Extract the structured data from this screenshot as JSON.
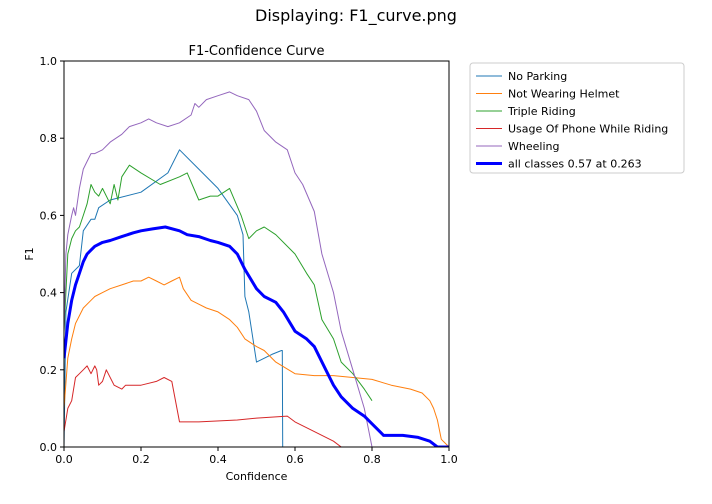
{
  "window": {
    "title": "Displaying: F1_curve.png"
  },
  "chart_data": {
    "type": "line",
    "title": "F1-Confidence Curve",
    "xlabel": "Confidence",
    "ylabel": "F1",
    "xlim": [
      0.0,
      1.0
    ],
    "ylim": [
      0.0,
      1.0
    ],
    "xticks": [
      "0.0",
      "0.2",
      "0.4",
      "0.6",
      "0.8",
      "1.0"
    ],
    "yticks": [
      "0.0",
      "0.2",
      "0.4",
      "0.6",
      "0.8",
      "1.0"
    ],
    "grid": false,
    "legend_position": "outside-right-top",
    "series": [
      {
        "name": "No Parking",
        "color": "#1f77b4",
        "width": "thin",
        "x": [
          0.0,
          0.005,
          0.02,
          0.04,
          0.05,
          0.07,
          0.08,
          0.09,
          0.12,
          0.2,
          0.27,
          0.3,
          0.35,
          0.4,
          0.45,
          0.465,
          0.47,
          0.48,
          0.5,
          0.54,
          0.565,
          0.567,
          0.568
        ],
        "y": [
          0.0,
          0.35,
          0.45,
          0.47,
          0.56,
          0.59,
          0.59,
          0.62,
          0.64,
          0.66,
          0.71,
          0.77,
          0.72,
          0.67,
          0.6,
          0.55,
          0.39,
          0.35,
          0.22,
          0.24,
          0.25,
          0.25,
          0.0
        ]
      },
      {
        "name": "Not Wearing Helmet",
        "color": "#ff7f0e",
        "width": "thin",
        "x": [
          0.0,
          0.01,
          0.02,
          0.03,
          0.05,
          0.07,
          0.08,
          0.1,
          0.12,
          0.15,
          0.18,
          0.2,
          0.22,
          0.24,
          0.26,
          0.28,
          0.3,
          0.31,
          0.33,
          0.35,
          0.37,
          0.4,
          0.43,
          0.45,
          0.47,
          0.5,
          0.52,
          0.55,
          0.6,
          0.65,
          0.7,
          0.75,
          0.8,
          0.85,
          0.9,
          0.93,
          0.95,
          0.96,
          0.97,
          0.98,
          1.0
        ],
        "y": [
          0.1,
          0.23,
          0.28,
          0.32,
          0.36,
          0.38,
          0.39,
          0.4,
          0.41,
          0.42,
          0.43,
          0.43,
          0.44,
          0.43,
          0.42,
          0.43,
          0.44,
          0.41,
          0.38,
          0.37,
          0.36,
          0.35,
          0.33,
          0.31,
          0.28,
          0.26,
          0.25,
          0.22,
          0.19,
          0.185,
          0.185,
          0.18,
          0.175,
          0.16,
          0.15,
          0.14,
          0.12,
          0.1,
          0.07,
          0.02,
          0.0
        ]
      },
      {
        "name": "Triple Riding",
        "color": "#2ca02c",
        "width": "thin",
        "x": [
          0.0,
          0.01,
          0.02,
          0.03,
          0.04,
          0.05,
          0.06,
          0.07,
          0.08,
          0.09,
          0.1,
          0.12,
          0.13,
          0.14,
          0.15,
          0.17,
          0.2,
          0.25,
          0.3,
          0.32,
          0.35,
          0.38,
          0.4,
          0.43,
          0.46,
          0.48,
          0.5,
          0.52,
          0.55,
          0.6,
          0.63,
          0.65,
          0.67,
          0.7,
          0.72,
          0.75,
          0.78,
          0.8
        ],
        "y": [
          0.3,
          0.5,
          0.54,
          0.56,
          0.57,
          0.6,
          0.63,
          0.68,
          0.66,
          0.65,
          0.67,
          0.63,
          0.68,
          0.64,
          0.7,
          0.73,
          0.71,
          0.68,
          0.7,
          0.71,
          0.64,
          0.65,
          0.65,
          0.67,
          0.6,
          0.54,
          0.56,
          0.57,
          0.55,
          0.5,
          0.45,
          0.42,
          0.33,
          0.28,
          0.22,
          0.19,
          0.15,
          0.12
        ]
      },
      {
        "name": "Usage Of Phone While Riding",
        "color": "#d62728",
        "width": "thin",
        "x": [
          0.0,
          0.01,
          0.02,
          0.025,
          0.03,
          0.04,
          0.05,
          0.06,
          0.07,
          0.08,
          0.085,
          0.09,
          0.1,
          0.11,
          0.13,
          0.15,
          0.16,
          0.2,
          0.24,
          0.26,
          0.28,
          0.3,
          0.35,
          0.45,
          0.5,
          0.58,
          0.6,
          0.65,
          0.7,
          0.72,
          0.8
        ],
        "y": [
          0.04,
          0.1,
          0.12,
          0.15,
          0.18,
          0.19,
          0.2,
          0.21,
          0.19,
          0.21,
          0.2,
          0.16,
          0.17,
          0.2,
          0.16,
          0.15,
          0.16,
          0.16,
          0.17,
          0.18,
          0.17,
          0.065,
          0.065,
          0.07,
          0.075,
          0.08,
          0.065,
          0.04,
          0.015,
          0.0,
          0.0
        ]
      },
      {
        "name": "Wheeling",
        "color": "#9467bd",
        "width": "thin",
        "x": [
          0.0,
          0.005,
          0.01,
          0.02,
          0.025,
          0.03,
          0.04,
          0.05,
          0.06,
          0.07,
          0.08,
          0.1,
          0.12,
          0.15,
          0.17,
          0.2,
          0.22,
          0.24,
          0.27,
          0.3,
          0.33,
          0.34,
          0.35,
          0.37,
          0.4,
          0.43,
          0.45,
          0.48,
          0.5,
          0.52,
          0.55,
          0.58,
          0.6,
          0.62,
          0.65,
          0.67,
          0.7,
          0.72,
          0.75,
          0.78,
          0.8
        ],
        "y": [
          0.3,
          0.5,
          0.55,
          0.6,
          0.62,
          0.6,
          0.67,
          0.72,
          0.74,
          0.76,
          0.76,
          0.77,
          0.79,
          0.81,
          0.83,
          0.84,
          0.85,
          0.84,
          0.83,
          0.84,
          0.86,
          0.89,
          0.88,
          0.9,
          0.91,
          0.92,
          0.91,
          0.9,
          0.87,
          0.82,
          0.79,
          0.77,
          0.71,
          0.68,
          0.61,
          0.5,
          0.4,
          0.3,
          0.2,
          0.1,
          0.0
        ]
      },
      {
        "name": "all classes 0.57 at 0.263",
        "color": "#0000ff",
        "width": "thick",
        "x": [
          0.0,
          0.01,
          0.02,
          0.03,
          0.04,
          0.05,
          0.06,
          0.07,
          0.08,
          0.1,
          0.12,
          0.15,
          0.18,
          0.2,
          0.23,
          0.263,
          0.3,
          0.32,
          0.35,
          0.38,
          0.4,
          0.43,
          0.45,
          0.47,
          0.5,
          0.52,
          0.55,
          0.57,
          0.6,
          0.63,
          0.65,
          0.68,
          0.7,
          0.72,
          0.75,
          0.78,
          0.8,
          0.83,
          0.88,
          0.92,
          0.95,
          0.97,
          1.0
        ],
        "y": [
          0.23,
          0.32,
          0.38,
          0.42,
          0.45,
          0.48,
          0.5,
          0.51,
          0.52,
          0.53,
          0.535,
          0.545,
          0.555,
          0.56,
          0.565,
          0.57,
          0.56,
          0.55,
          0.545,
          0.535,
          0.53,
          0.52,
          0.5,
          0.46,
          0.41,
          0.39,
          0.375,
          0.35,
          0.3,
          0.28,
          0.26,
          0.2,
          0.16,
          0.13,
          0.1,
          0.08,
          0.06,
          0.03,
          0.03,
          0.025,
          0.015,
          0.0,
          0.0
        ]
      }
    ]
  }
}
